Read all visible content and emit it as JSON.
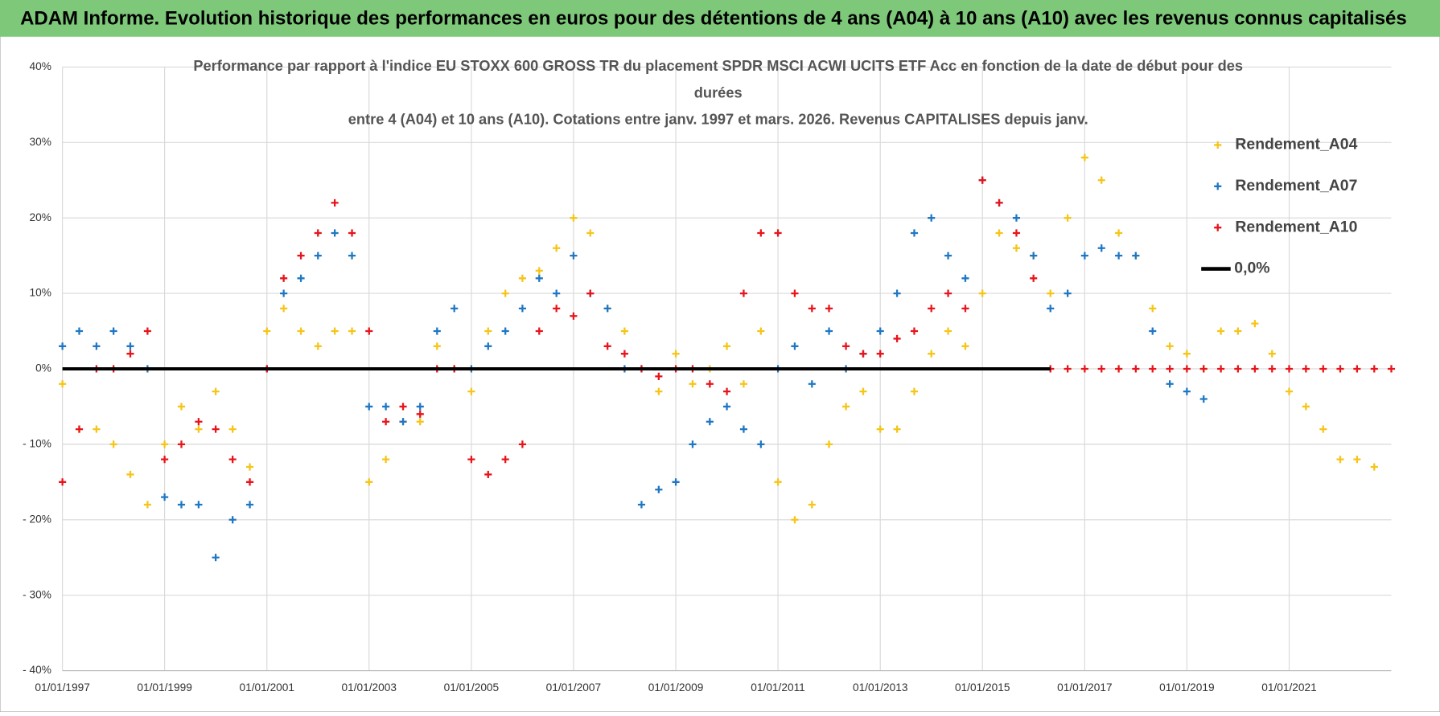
{
  "header": "ADAM Informe. Evolution historique des performances en euros pour des détentions de 4 ans (A04) à 10 ans (A10) avec les revenus connus capitalisés",
  "chart_data": {
    "type": "scatter",
    "title": [
      "Performance par rapport à l'indice EU STOXX 600 GROSS TR  du placement SPDR MSCI ACWI UCITS ETF Acc en fonction de la date de début pour des",
      "durées",
      "entre 4 (A04) et 10 ans (A10). Cotations entre janv. 1997 et mars. 2026. Revenus CAPITALISES depuis janv."
    ],
    "x": [
      "01/01/1997",
      "01/05/1997",
      "01/09/1997",
      "01/01/1998",
      "01/05/1998",
      "01/09/1998",
      "01/01/1999",
      "01/05/1999",
      "01/09/1999",
      "01/01/2000",
      "01/05/2000",
      "01/09/2000",
      "01/01/2001",
      "01/05/2001",
      "01/09/2001",
      "01/01/2002",
      "01/05/2002",
      "01/09/2002",
      "01/01/2003",
      "01/05/2003",
      "01/09/2003",
      "01/01/2004",
      "01/05/2004",
      "01/09/2004",
      "01/01/2005",
      "01/05/2005",
      "01/09/2005",
      "01/01/2006",
      "01/05/2006",
      "01/09/2006",
      "01/01/2007",
      "01/05/2007",
      "01/09/2007",
      "01/01/2008",
      "01/05/2008",
      "01/09/2008",
      "01/01/2009",
      "01/05/2009",
      "01/09/2009",
      "01/01/2010",
      "01/05/2010",
      "01/09/2010",
      "01/01/2011",
      "01/05/2011",
      "01/09/2011",
      "01/01/2012",
      "01/05/2012",
      "01/09/2012",
      "01/01/2013",
      "01/05/2013",
      "01/09/2013",
      "01/01/2014",
      "01/05/2014",
      "01/09/2014",
      "01/01/2015",
      "01/05/2015",
      "01/09/2015",
      "01/01/2016",
      "01/05/2016",
      "01/09/2016",
      "01/01/2017",
      "01/05/2017",
      "01/09/2017",
      "01/01/2018",
      "01/05/2018",
      "01/09/2018",
      "01/01/2019",
      "01/05/2019",
      "01/09/2019",
      "01/01/2020",
      "01/05/2020",
      "01/09/2020",
      "01/01/2021",
      "01/05/2021",
      "01/09/2021",
      "01/01/2022",
      "01/05/2022",
      "01/09/2022",
      "01/01/2023"
    ],
    "series": [
      {
        "name": "Rendement_A04",
        "color": "#f5c518",
        "values": [
          -2,
          -8,
          -8,
          -10,
          -14,
          -18,
          -10,
          -5,
          -8,
          -3,
          -8,
          -13,
          5,
          8,
          5,
          3,
          5,
          5,
          -15,
          -12,
          -7,
          -7,
          3,
          0,
          -3,
          5,
          10,
          12,
          13,
          16,
          20,
          18,
          8,
          5,
          0,
          -3,
          2,
          -2,
          0,
          3,
          -2,
          5,
          -15,
          -20,
          -18,
          -10,
          -5,
          -3,
          -8,
          -8,
          -3,
          2,
          5,
          3,
          10,
          18,
          16,
          15,
          10,
          20,
          28,
          25,
          18,
          15,
          8,
          3,
          2,
          0,
          5,
          5,
          6,
          2,
          -3,
          -5,
          -8,
          -12,
          -12,
          -13,
          null
        ]
      },
      {
        "name": "Rendement_A07",
        "color": "#1f77c4",
        "values": [
          3,
          5,
          3,
          5,
          3,
          0,
          -17,
          -18,
          -18,
          -25,
          -20,
          -18,
          0,
          10,
          12,
          15,
          18,
          15,
          -5,
          -5,
          -7,
          -5,
          5,
          8,
          0,
          3,
          5,
          8,
          12,
          10,
          15,
          10,
          8,
          0,
          -18,
          -16,
          -15,
          -10,
          -7,
          -5,
          -8,
          -10,
          0,
          3,
          -2,
          5,
          0,
          2,
          5,
          10,
          18,
          20,
          15,
          12,
          25,
          22,
          20,
          15,
          8,
          10,
          15,
          16,
          15,
          15,
          5,
          -2,
          -3,
          -4,
          null,
          null,
          null,
          null,
          null,
          null,
          null,
          null,
          null,
          null,
          null
        ]
      },
      {
        "name": "Rendement_A10",
        "color": "#e8141b",
        "values": [
          -15,
          -8,
          0,
          0,
          2,
          5,
          -12,
          -10,
          -7,
          -8,
          -12,
          -15,
          0,
          12,
          15,
          18,
          22,
          18,
          5,
          -7,
          -5,
          -6,
          0,
          0,
          -12,
          -14,
          -12,
          -10,
          5,
          8,
          7,
          10,
          3,
          2,
          0,
          -1,
          0,
          0,
          -2,
          -3,
          10,
          18,
          18,
          10,
          8,
          8,
          3,
          2,
          2,
          4,
          5,
          8,
          10,
          8,
          25,
          22,
          18,
          12,
          0,
          0,
          0,
          0,
          0,
          0,
          0,
          0,
          0,
          0,
          0,
          0,
          0,
          0,
          0,
          0,
          0,
          0,
          0,
          0,
          0
        ]
      },
      {
        "name": "0,0%",
        "color": "#000000",
        "line": true,
        "x": [
          "01/01/1997",
          "01/05/2016"
        ],
        "values": [
          0,
          0
        ]
      }
    ],
    "xlim": [
      "01/01/1997",
      "01/01/2023"
    ],
    "xticks": [
      "01/01/1997",
      "01/01/1999",
      "01/01/2001",
      "01/01/2003",
      "01/01/2005",
      "01/01/2007",
      "01/01/2009",
      "01/01/2011",
      "01/01/2013",
      "01/01/2015",
      "01/01/2017",
      "01/01/2019",
      "01/01/2021"
    ],
    "ylim": [
      -40,
      40
    ],
    "yticks": [
      {
        "value": 40,
        "label": "40%"
      },
      {
        "value": 30,
        "label": "30%"
      },
      {
        "value": 20,
        "label": "20%"
      },
      {
        "value": 10,
        "label": "10%"
      },
      {
        "value": 0,
        "label": "0%"
      },
      {
        "value": -10,
        "label": "- 10%"
      },
      {
        "value": -20,
        "label": "- 20%"
      },
      {
        "value": -30,
        "label": "- 30%"
      },
      {
        "value": -40,
        "label": "- 40%"
      }
    ],
    "grid": true
  }
}
